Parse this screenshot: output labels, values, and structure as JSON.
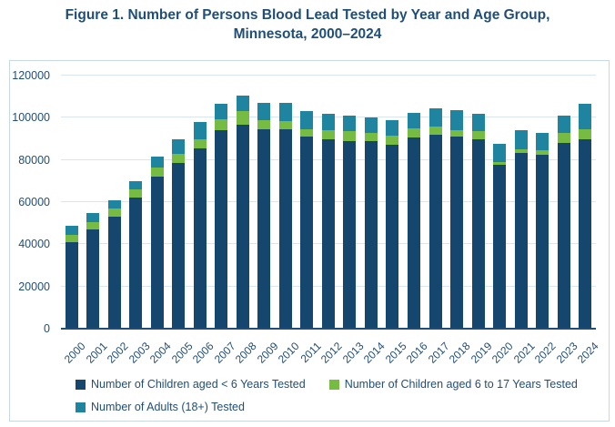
{
  "title": {
    "line1": "Figure 1. Number of Persons Blood Lead Tested by Year and Age Group,",
    "line2": "Minnesota, 2000–2024"
  },
  "colors": {
    "navy": "#15466E",
    "green": "#76BC43",
    "teal": "#1F84A0",
    "title_text": "#1F4E79",
    "axis_text": "#1F4E79",
    "gridline": "#D9E5F2",
    "panel_border": "#C9D8E6",
    "axis_line": "#1F4E79"
  },
  "chart_data": {
    "type": "bar",
    "stacked": true,
    "title": "Figure 1. Number of Persons Blood Lead Tested by Year and Age Group, Minnesota, 2000–2024",
    "xlabel": "",
    "ylabel": "",
    "categories": [
      "2000",
      "2001",
      "2002",
      "2003",
      "2004",
      "2005",
      "2006",
      "2007",
      "2008",
      "2009",
      "2010",
      "2011",
      "2012",
      "2013",
      "2014",
      "2015",
      "2016",
      "2017",
      "2018",
      "2019",
      "2020",
      "2021",
      "2022",
      "2023",
      "2024"
    ],
    "series": [
      {
        "name": "Number of Children aged < 6 Years Tested",
        "color_key": "navy",
        "values": [
          41000,
          47000,
          53000,
          62000,
          72000,
          78500,
          85500,
          94000,
          96500,
          94500,
          94500,
          91000,
          90000,
          89000,
          89000,
          87000,
          90500,
          92000,
          91000,
          90000,
          77500,
          83500,
          82500,
          88000,
          90000
        ]
      },
      {
        "name": "Number of Children aged 6 to 17 Years Tested",
        "color_key": "green",
        "values": [
          3500,
          3500,
          4000,
          4000,
          4500,
          4500,
          4500,
          5500,
          6500,
          4500,
          4000,
          3500,
          4000,
          4500,
          4000,
          4500,
          4500,
          4000,
          3200,
          3500,
          1500,
          1500,
          2000,
          5000,
          4500
        ]
      },
      {
        "name": "Number of Adults (18+) Tested",
        "color_key": "teal",
        "values": [
          4500,
          4500,
          4000,
          4000,
          5000,
          7000,
          8000,
          7000,
          7500,
          8000,
          8500,
          8500,
          8000,
          7500,
          7000,
          7500,
          7500,
          8500,
          9300,
          8500,
          8500,
          9000,
          8500,
          8000,
          12000
        ]
      }
    ],
    "ylim": [
      0,
      120000
    ],
    "yticks": [
      0,
      20000,
      40000,
      60000,
      80000,
      100000,
      120000
    ],
    "grid": true,
    "legend_position": "bottom",
    "legend_rows": [
      [
        0,
        1
      ],
      [
        2
      ]
    ]
  }
}
